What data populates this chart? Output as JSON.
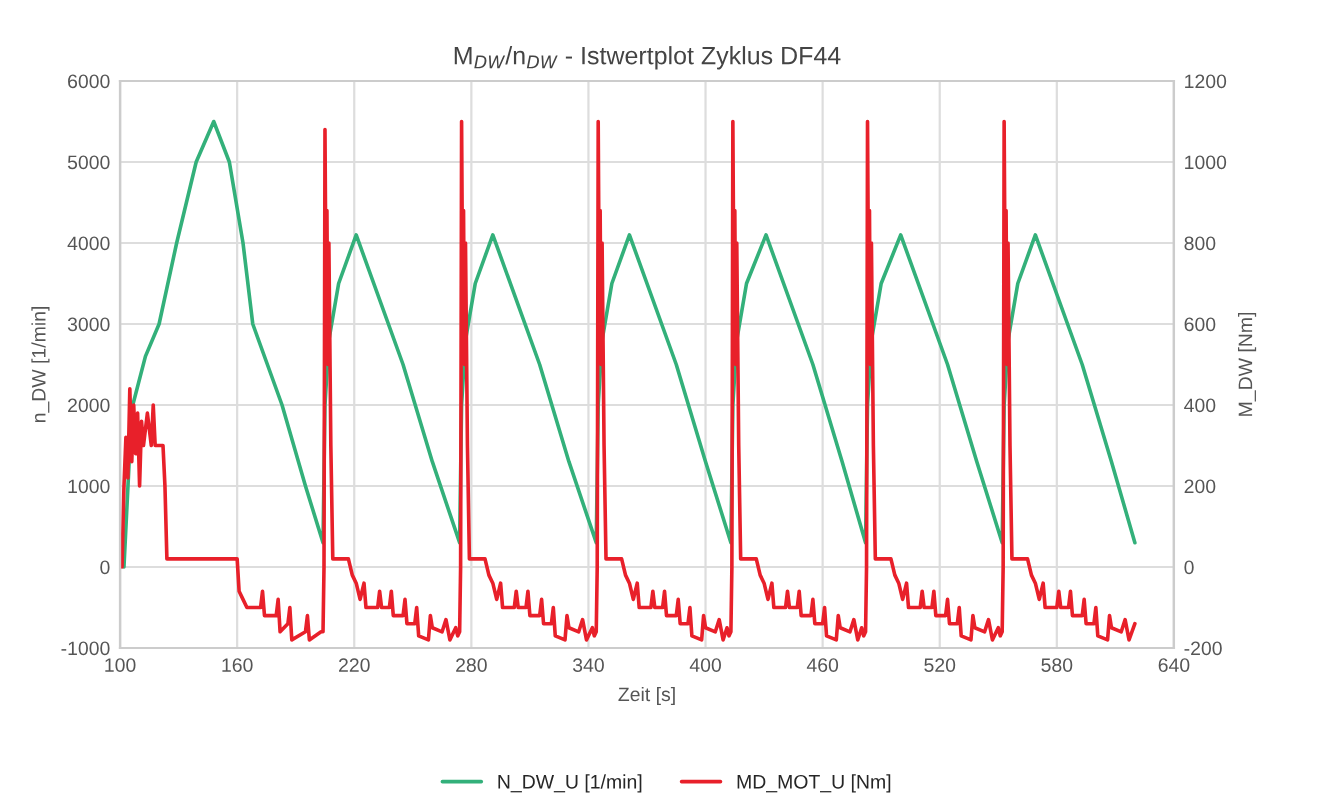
{
  "chart_data": {
    "type": "line",
    "title": "M$_{DW}$/n$_{DW}$ - Istwertplot Zyklus DF44",
    "xlabel": "Zeit [s]",
    "ylabel": "n_DW [1/min]",
    "y2label": "M_DW [Nm]",
    "xlim": [
      100,
      640
    ],
    "xticks": [
      100,
      160,
      220,
      280,
      340,
      400,
      460,
      520,
      580,
      640
    ],
    "ylim": [
      -1000,
      6000
    ],
    "yticks": [
      -1000,
      0,
      1000,
      2000,
      3000,
      4000,
      5000,
      6000
    ],
    "y2lim": [
      -200,
      1200
    ],
    "y2ticks": [
      -200,
      0,
      200,
      400,
      600,
      800,
      1000,
      1200
    ],
    "grid": true,
    "legend": "bottom",
    "marker": "none",
    "line_style": "solid",
    "series": [
      {
        "name": "N_DW_U [1/min]",
        "color": "#33b07a",
        "x": [
          102,
          106,
          113,
          120,
          129,
          139,
          148,
          156,
          163,
          168,
          183,
          195,
          204,
          205,
          207,
          212,
          221,
          245,
          260,
          274,
          275,
          277,
          282,
          291,
          315,
          330,
          344,
          345,
          347,
          352,
          361,
          385,
          400,
          413,
          414,
          416,
          421,
          431,
          455,
          470,
          482,
          483,
          485,
          490,
          500,
          524,
          539,
          552,
          553,
          555,
          560,
          569,
          593,
          608,
          620
        ],
        "values": [
          0,
          1950,
          2600,
          3000,
          4000,
          5000,
          5500,
          5000,
          4000,
          3000,
          2000,
          1000,
          300,
          2000,
          2800,
          3500,
          4100,
          2500,
          1300,
          300,
          2000,
          2800,
          3500,
          4100,
          2500,
          1300,
          300,
          2000,
          2800,
          3500,
          4100,
          2500,
          1300,
          300,
          2000,
          2800,
          3500,
          4100,
          2500,
          1300,
          300,
          2000,
          2800,
          3500,
          4100,
          2500,
          1300,
          300,
          2000,
          2800,
          3500,
          4100,
          2500,
          1300,
          300
        ]
      },
      {
        "name": "MD_MOT_U [Nm]",
        "color": "#e8202a",
        "axis": "y2",
        "x": [
          101,
          102,
          103,
          104,
          105,
          106,
          107,
          108,
          109,
          110,
          111,
          112,
          114,
          116,
          117,
          118,
          122,
          123,
          124,
          160,
          161,
          163,
          165,
          172,
          173,
          174,
          180,
          181,
          182,
          186,
          187,
          188,
          195,
          196,
          197,
          203,
          204,
          204.5,
          205,
          205.5,
          206,
          206.5,
          207,
          208,
          209,
          217,
          219,
          221,
          223,
          225,
          226,
          232,
          233,
          234,
          238,
          239,
          240,
          245,
          246,
          247,
          251,
          252,
          253,
          258,
          259,
          260,
          265,
          267,
          269,
          272,
          273,
          274,
          274.5,
          275,
          275.5,
          276,
          276.5,
          277,
          278,
          279,
          287,
          289,
          291,
          293,
          295,
          296,
          302,
          303,
          304,
          308,
          309,
          310,
          315,
          316,
          317,
          321,
          322,
          323,
          328,
          329,
          330,
          335,
          337,
          339,
          342,
          343,
          344,
          344.5,
          345,
          345.5,
          346,
          346.5,
          347,
          348,
          349,
          357,
          359,
          361,
          363,
          365,
          366,
          372,
          373,
          374,
          378,
          379,
          380,
          385,
          386,
          387,
          391,
          392,
          393,
          398,
          399,
          400,
          405,
          407,
          409,
          411,
          412,
          413,
          413.5,
          414,
          414.5,
          415,
          415.5,
          416,
          417,
          418,
          426,
          428,
          430,
          432,
          434,
          435,
          441,
          442,
          443,
          447,
          448,
          449,
          454,
          455,
          456,
          460,
          461,
          462,
          467,
          468,
          469,
          474,
          476,
          478,
          480,
          481,
          482,
          482.5,
          483,
          483.5,
          484,
          484.5,
          485,
          486,
          487,
          495,
          497,
          499,
          501,
          503,
          504,
          510,
          511,
          512,
          516,
          517,
          518,
          523,
          524,
          525,
          529,
          530,
          531,
          536,
          537,
          538,
          543,
          545,
          547,
          550,
          551,
          552,
          552.5,
          553,
          553.5,
          554,
          554.5,
          555,
          556,
          557,
          565,
          567,
          569,
          571,
          573,
          574,
          580,
          581,
          582,
          586,
          587,
          588,
          593,
          594,
          595,
          599,
          600,
          601,
          606,
          607,
          608,
          613,
          615,
          617,
          620
        ],
        "values": [
          0,
          200,
          320,
          220,
          440,
          260,
          400,
          280,
          380,
          200,
          360,
          300,
          380,
          300,
          400,
          300,
          300,
          200,
          20,
          20,
          -60,
          -80,
          -100,
          -100,
          -60,
          -120,
          -120,
          -80,
          -160,
          -140,
          -100,
          -180,
          -160,
          -120,
          -180,
          -160,
          -160,
          0,
          1080,
          700,
          880,
          500,
          800,
          300,
          20,
          20,
          -20,
          -40,
          -80,
          -40,
          -100,
          -100,
          -60,
          -100,
          -100,
          -60,
          -120,
          -120,
          -80,
          -140,
          -140,
          -100,
          -170,
          -180,
          -120,
          -150,
          -160,
          -130,
          -180,
          -150,
          -170,
          -160,
          0,
          1100,
          700,
          880,
          500,
          800,
          300,
          20,
          20,
          -20,
          -40,
          -80,
          -40,
          -100,
          -100,
          -60,
          -100,
          -100,
          -60,
          -120,
          -120,
          -80,
          -140,
          -140,
          -100,
          -170,
          -180,
          -120,
          -150,
          -160,
          -130,
          -180,
          -150,
          -170,
          -160,
          0,
          1100,
          700,
          880,
          500,
          800,
          300,
          20,
          20,
          -20,
          -40,
          -80,
          -40,
          -100,
          -100,
          -60,
          -100,
          -100,
          -60,
          -120,
          -120,
          -80,
          -140,
          -140,
          -100,
          -170,
          -180,
          -120,
          -150,
          -160,
          -130,
          -180,
          -150,
          -170,
          -160,
          0,
          1100,
          700,
          880,
          500,
          800,
          300,
          20,
          20,
          -20,
          -40,
          -80,
          -40,
          -100,
          -100,
          -60,
          -100,
          -100,
          -60,
          -120,
          -120,
          -80,
          -140,
          -140,
          -100,
          -170,
          -180,
          -120,
          -150,
          -160,
          -130,
          -180,
          -150,
          -170,
          -160,
          0,
          1100,
          700,
          880,
          500,
          800,
          300,
          20,
          20,
          -20,
          -40,
          -80,
          -40,
          -100,
          -100,
          -60,
          -100,
          -100,
          -60,
          -120,
          -120,
          -80,
          -140,
          -140,
          -100,
          -170,
          -180,
          -120,
          -150,
          -160,
          -130,
          -180,
          -150,
          -170,
          -160,
          0,
          1100,
          700,
          880,
          500,
          800,
          300,
          20,
          20,
          -20,
          -40,
          -80,
          -40,
          -100,
          -100,
          -60,
          -100,
          -100,
          -60,
          -120,
          -120,
          -80,
          -140,
          -140,
          -100,
          -170,
          -180,
          -120,
          -150,
          -160,
          -130,
          -180,
          -140
        ]
      }
    ]
  }
}
